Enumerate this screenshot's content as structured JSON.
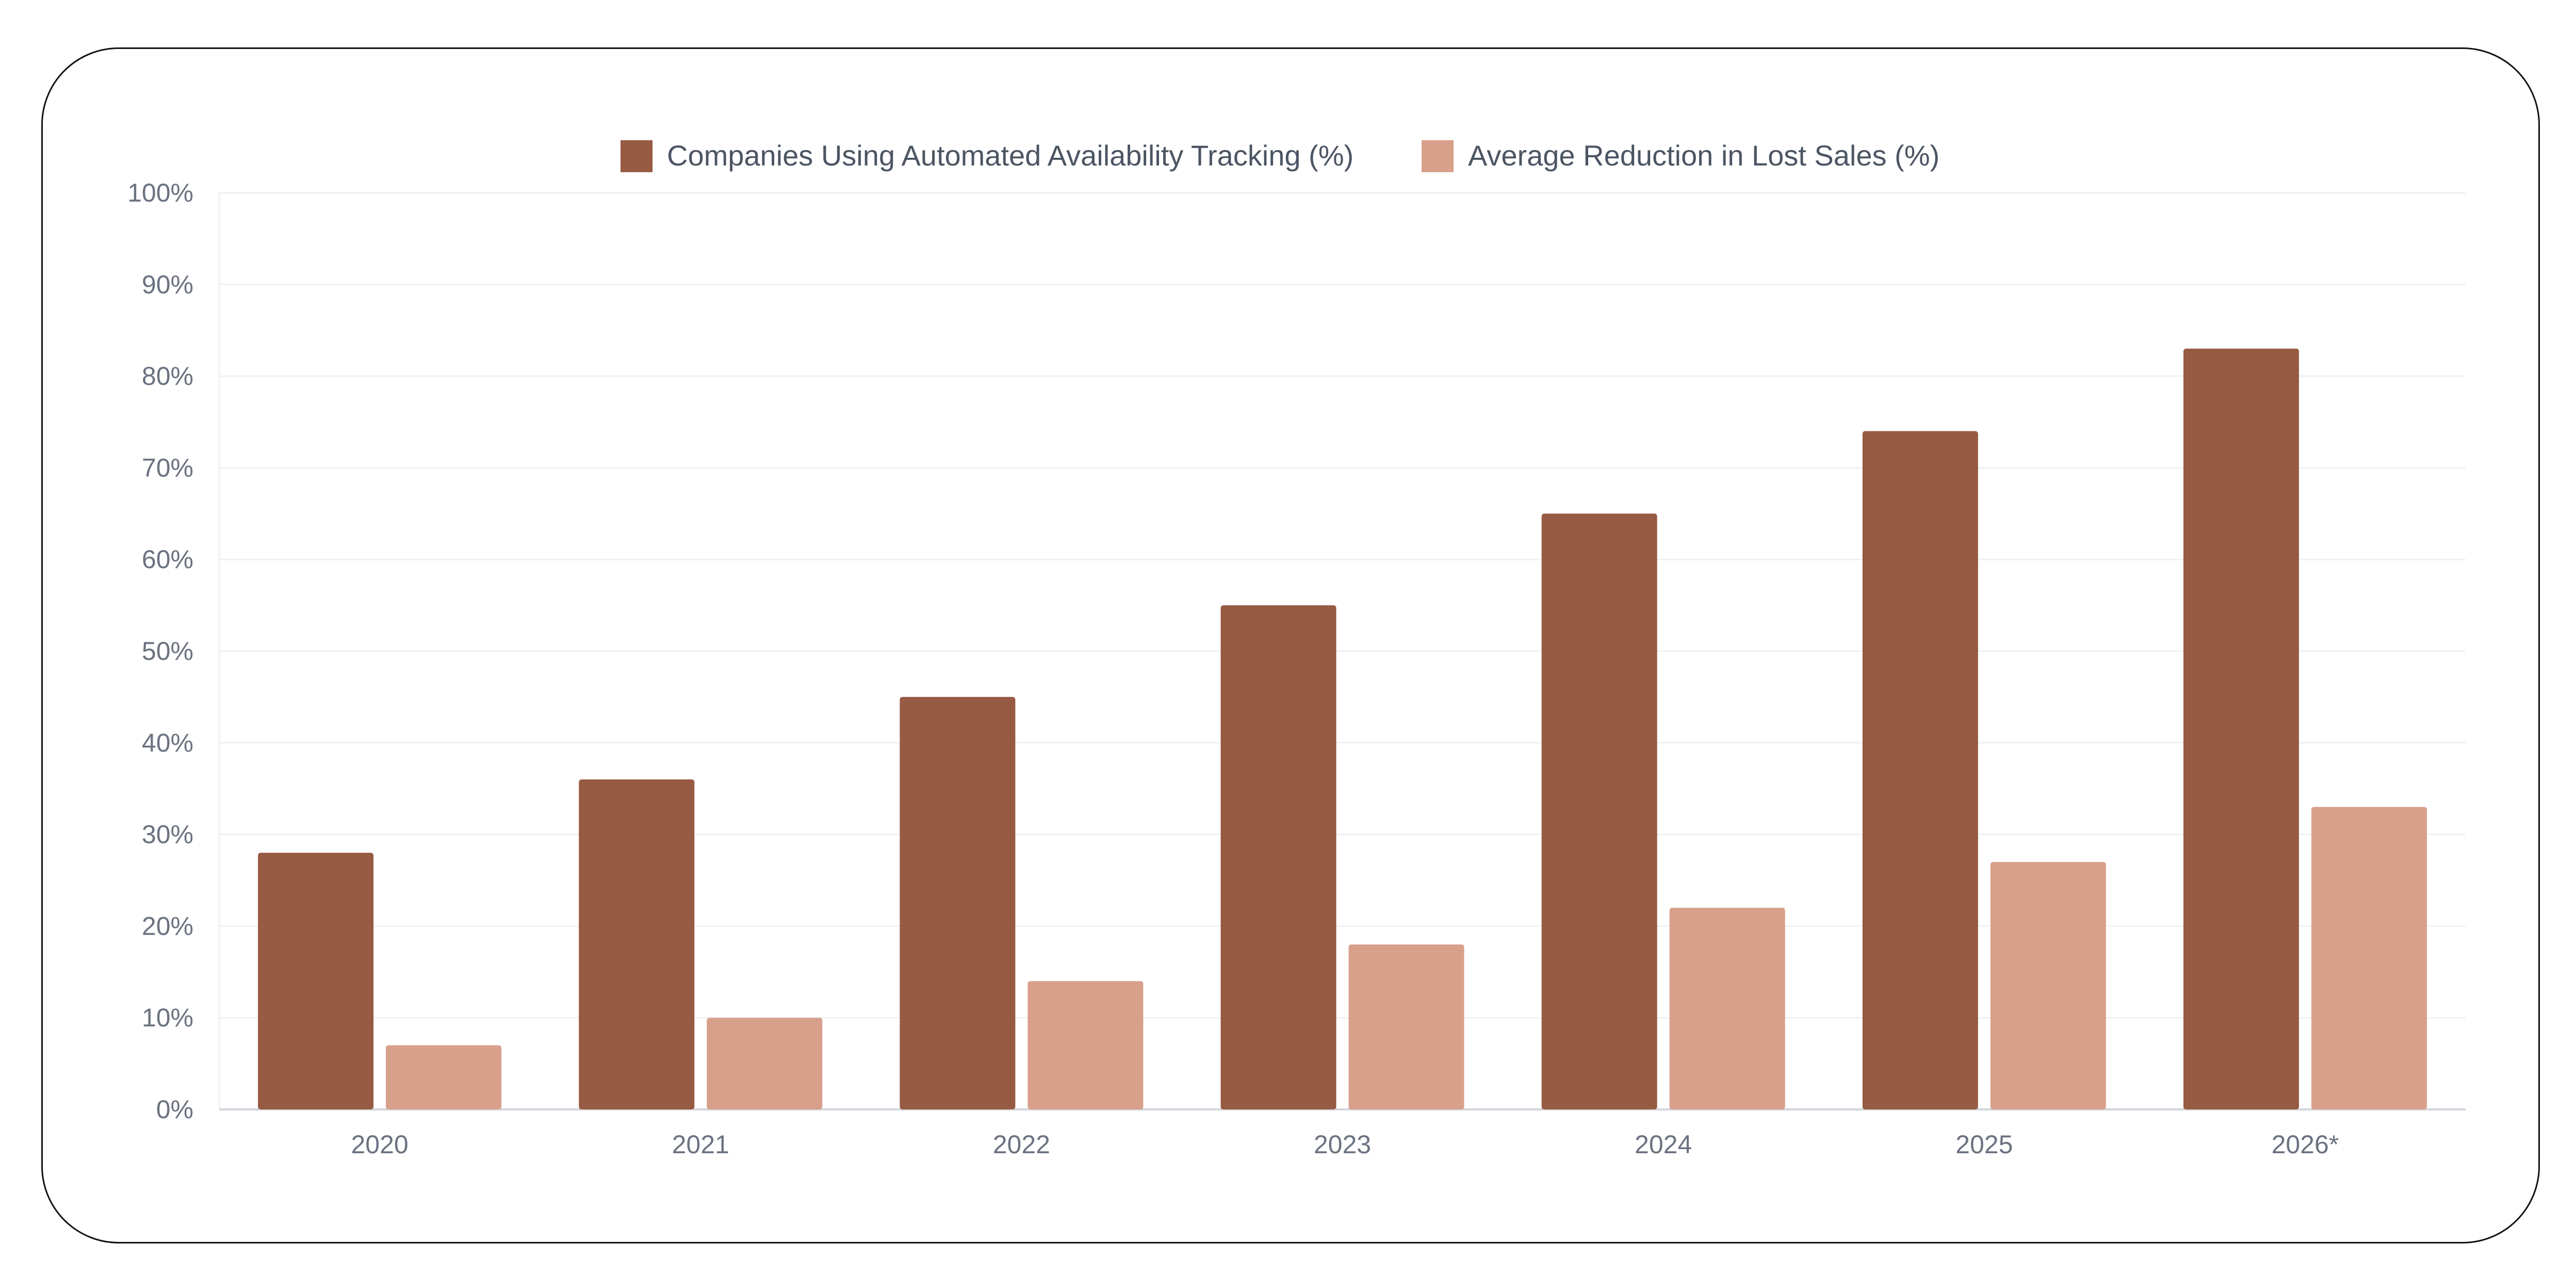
{
  "chart_data": {
    "type": "bar",
    "categories": [
      "2020",
      "2021",
      "2022",
      "2023",
      "2024",
      "2025",
      "2026*"
    ],
    "series": [
      {
        "name": "Companies Using Automated Availability Tracking (%)",
        "values": [
          28,
          36,
          45,
          55,
          65,
          74,
          83
        ],
        "color": "#975a43"
      },
      {
        "name": "Average Reduction in Lost Sales (%)",
        "values": [
          7,
          10,
          14,
          18,
          22,
          27,
          33
        ],
        "color": "#d8a08b"
      }
    ],
    "yticks": [
      "0%",
      "10%",
      "20%",
      "30%",
      "40%",
      "50%",
      "60%",
      "70%",
      "80%",
      "90%",
      "100%"
    ],
    "ylim": [
      0,
      100
    ],
    "grid": true,
    "legend": "top-center"
  }
}
